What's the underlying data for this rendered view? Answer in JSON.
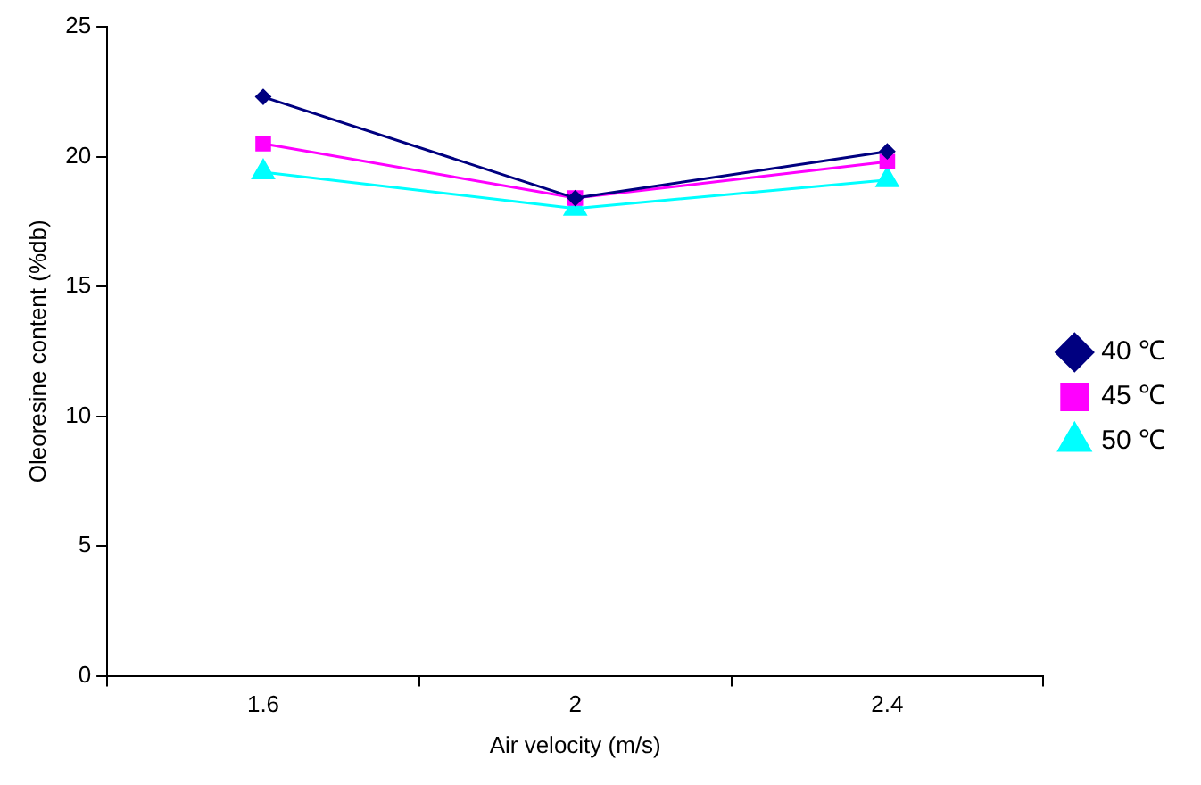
{
  "chart_data": {
    "type": "line",
    "xlabel": "Air velocity (m/s)",
    "ylabel": "Oleoresine content (%db)",
    "categories": [
      "1.6",
      "2",
      "2.4"
    ],
    "series": [
      {
        "name": "40 ℃",
        "color": "#000080",
        "marker": "diamond",
        "values": [
          22.3,
          18.4,
          20.2
        ]
      },
      {
        "name": "45 ℃",
        "color": "#ff00ff",
        "marker": "square",
        "values": [
          20.5,
          18.4,
          19.8
        ]
      },
      {
        "name": "50 ℃",
        "color": "#00ffff",
        "marker": "triangle",
        "values": [
          19.4,
          18.0,
          19.1
        ]
      }
    ],
    "ylim": [
      0,
      25
    ],
    "yticks": [
      0,
      5,
      10,
      15,
      20,
      25
    ],
    "grid": false,
    "legend": "right"
  }
}
